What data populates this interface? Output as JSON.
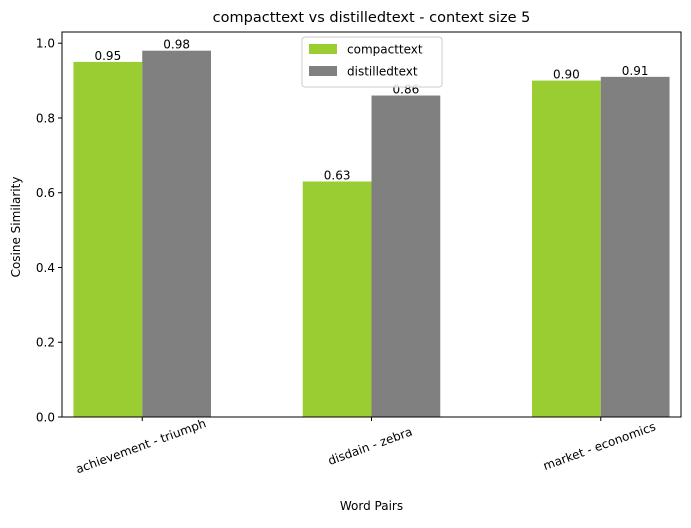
{
  "chart_data": {
    "type": "bar",
    "title": "compacttext vs distilledtext - context size 5",
    "xlabel": "Word Pairs",
    "ylabel": "Cosine Similarity",
    "categories": [
      "achievement - triumph",
      "disdain - zebra",
      "market - economics"
    ],
    "series": [
      {
        "name": "compacttext",
        "color": "#9ACD32",
        "values": [
          0.95,
          0.63,
          0.9
        ],
        "labels": [
          "0.95",
          "0.63",
          "0.90"
        ]
      },
      {
        "name": "distilledtext",
        "color": "#808080",
        "values": [
          0.98,
          0.86,
          0.91
        ],
        "labels": [
          "0.98",
          "0.86",
          "0.91"
        ]
      }
    ],
    "ylim": [
      0,
      1.03
    ],
    "yticks": [
      0.0,
      0.2,
      0.4,
      0.6,
      0.8,
      1.0
    ],
    "ytick_labels": [
      "0.0",
      "0.2",
      "0.4",
      "0.6",
      "0.8",
      "1.0"
    ],
    "grid": false,
    "legend_position": "top-center",
    "xtick_rotation": -20
  }
}
